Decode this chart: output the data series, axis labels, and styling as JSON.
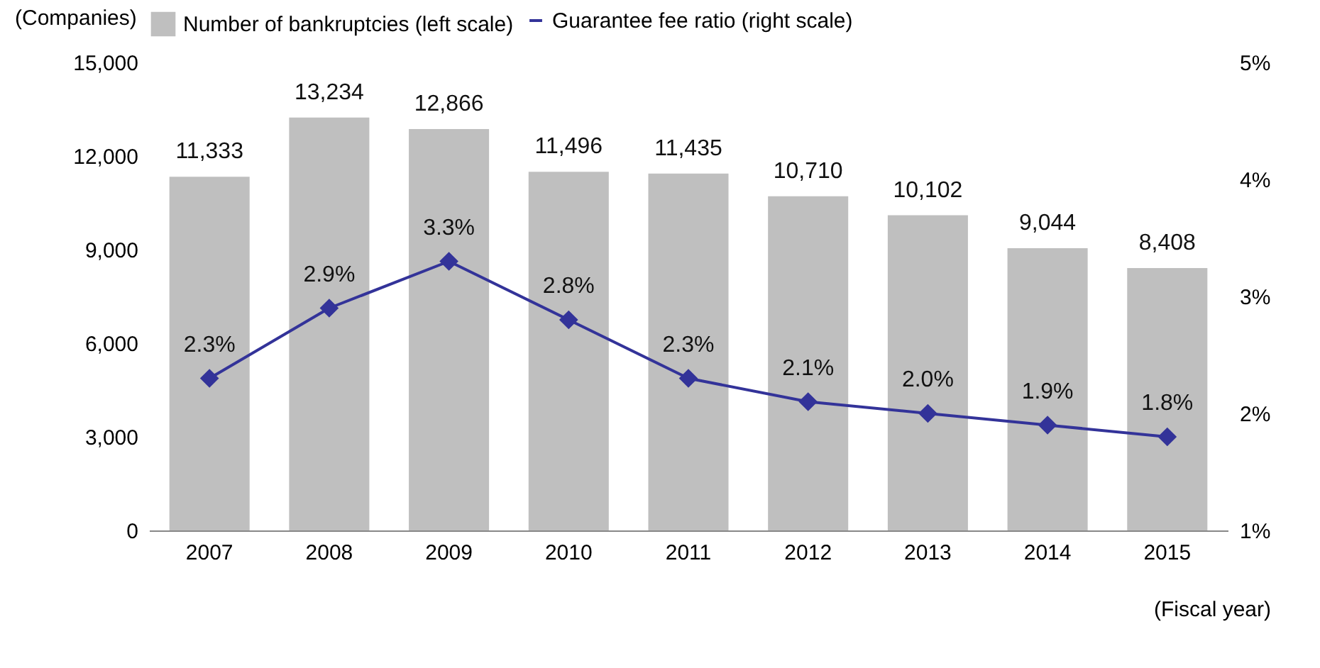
{
  "chart_data": {
    "type": "bar",
    "xlabel": "(Fiscal year)",
    "ylabel": "(Companies)",
    "categories": [
      "2007",
      "2008",
      "2009",
      "2010",
      "2011",
      "2012",
      "2013",
      "2014",
      "2015"
    ],
    "series": [
      {
        "name": "Number of bankruptcies (left scale)",
        "color": "#bfbfbf",
        "values": [
          11333,
          13234,
          12866,
          11496,
          11435,
          10710,
          10102,
          9044,
          8408
        ],
        "value_labels": [
          "11,333",
          "13,234",
          "12,866",
          "11,496",
          "11,435",
          "10,710",
          "10,102",
          "9,044",
          "8,408"
        ]
      },
      {
        "name": "Guarantee fee ratio (right scale)",
        "type": "line",
        "axis": "y2",
        "color": "#333399",
        "marker": "diamond",
        "values": [
          2.3,
          2.9,
          3.3,
          2.8,
          2.3,
          2.1,
          2.0,
          1.9,
          1.8
        ],
        "value_labels": [
          "2.3%",
          "2.9%",
          "3.3%",
          "2.8%",
          "2.3%",
          "2.1%",
          "2.0%",
          "1.9%",
          "1.8%"
        ]
      }
    ],
    "ylim": [
      0,
      15000
    ],
    "yticks": [
      {
        "value": 0,
        "label": "0"
      },
      {
        "value": 3000,
        "label": "3,000"
      },
      {
        "value": 6000,
        "label": "6,000"
      },
      {
        "value": 9000,
        "label": "9,000"
      },
      {
        "value": 12000,
        "label": "12,000"
      },
      {
        "value": 15000,
        "label": "15,000"
      }
    ],
    "y2lim": [
      1,
      5
    ],
    "y2ticks": [
      {
        "value": 1,
        "label": "1%"
      },
      {
        "value": 2,
        "label": "2%"
      },
      {
        "value": 3,
        "label": "3%"
      },
      {
        "value": 4,
        "label": "4%"
      },
      {
        "value": 5,
        "label": "5%"
      }
    ],
    "legend": "top",
    "grid": false
  }
}
